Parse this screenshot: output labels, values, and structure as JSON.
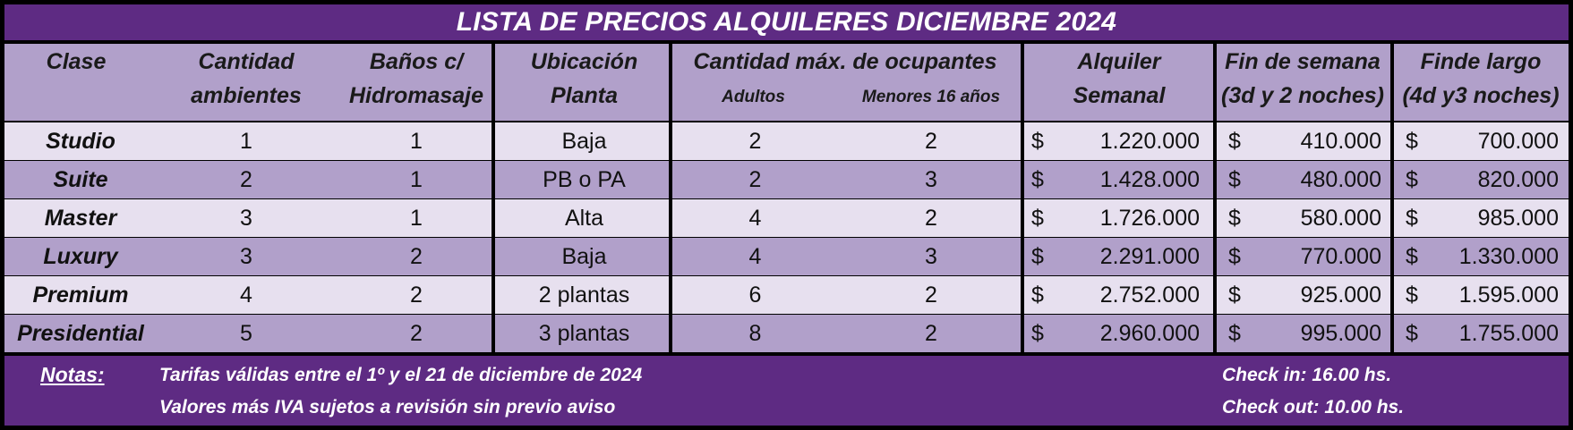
{
  "title": "LISTA DE PRECIOS ALQUILERES DICIEMBRE 2024",
  "headers": {
    "clase": "Clase",
    "cantidad_1": "Cantidad",
    "cantidad_2": "ambientes",
    "banos_1": "Baños c/",
    "banos_2": "Hidromasaje",
    "ubicacion_1": "Ubicación",
    "ubicacion_2": "Planta",
    "ocupantes": "Cantidad máx. de ocupantes",
    "adultos": "Adultos",
    "menores": "Menores 16 años",
    "alquiler_1": "Alquiler",
    "alquiler_2": "Semanal",
    "finsemana_1": "Fin de semana",
    "finsemana_2": "(3d y 2 noches)",
    "findelargo_1": "Finde largo",
    "findelargo_2": "(4d y3 noches)"
  },
  "currency_symbol": "$",
  "rows": [
    {
      "clase": "Studio",
      "ambientes": "1",
      "banos": "1",
      "planta": "Baja",
      "adultos": "2",
      "menores": "2",
      "semanal": "1.220.000",
      "fin_semana": "410.000",
      "finde_largo": "700.000"
    },
    {
      "clase": "Suite",
      "ambientes": "2",
      "banos": "1",
      "planta": "PB o PA",
      "adultos": "2",
      "menores": "3",
      "semanal": "1.428.000",
      "fin_semana": "480.000",
      "finde_largo": "820.000"
    },
    {
      "clase": "Master",
      "ambientes": "3",
      "banos": "1",
      "planta": "Alta",
      "adultos": "4",
      "menores": "2",
      "semanal": "1.726.000",
      "fin_semana": "580.000",
      "finde_largo": "985.000"
    },
    {
      "clase": "Luxury",
      "ambientes": "3",
      "banos": "2",
      "planta": "Baja",
      "adultos": "4",
      "menores": "3",
      "semanal": "2.291.000",
      "fin_semana": "770.000",
      "finde_largo": "1.330.000"
    },
    {
      "clase": "Premium",
      "ambientes": "4",
      "banos": "2",
      "planta": "2 plantas",
      "adultos": "6",
      "menores": "2",
      "semanal": "2.752.000",
      "fin_semana": "925.000",
      "finde_largo": "1.595.000"
    },
    {
      "clase": "Presidential",
      "ambientes": "5",
      "banos": "2",
      "planta": "3 plantas",
      "adultos": "8",
      "menores": "2",
      "semanal": "2.960.000",
      "fin_semana": "995.000",
      "finde_largo": "1.755.000"
    }
  ],
  "footer": {
    "notas_label": "Notas:",
    "nota_1": "Tarifas válidas entre el 1º y el 21 de diciembre de 2024",
    "nota_2": "Valores más IVA sujetos a revisión sin previo aviso",
    "check_in": "Check in: 16.00 hs.",
    "check_out": "Check out: 10.00 hs."
  },
  "colors": {
    "banner_purple": "#5e2b83",
    "row_dark": "#b1a0ca",
    "row_light": "#e7e0ef",
    "border": "#000000"
  }
}
